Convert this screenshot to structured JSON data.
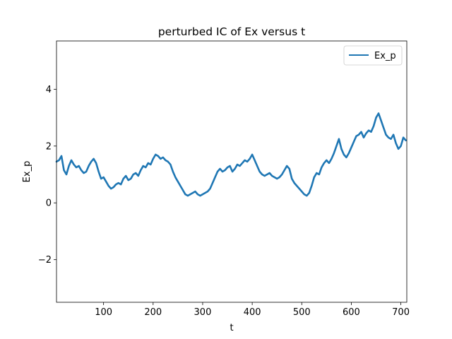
{
  "chart_data": {
    "type": "line",
    "title": "perturbed IC of Ex versus t",
    "xlabel": "t",
    "ylabel": "Ex_p",
    "xlim": [
      5,
      712
    ],
    "ylim": [
      -3.5,
      5.7
    ],
    "xticks": [
      100,
      200,
      300,
      400,
      500,
      600,
      700
    ],
    "yticks": [
      -2,
      0,
      2,
      4
    ],
    "ytick_labels": [
      "−2",
      "0",
      "2",
      "4"
    ],
    "grid": false,
    "legend": {
      "position": "top-right"
    },
    "series": [
      {
        "name": "Ex_p",
        "color": "#1f77b4",
        "x": [
          5,
          10,
          15,
          20,
          25,
          30,
          35,
          40,
          45,
          50,
          55,
          60,
          65,
          70,
          75,
          80,
          85,
          90,
          95,
          100,
          105,
          110,
          115,
          120,
          125,
          130,
          135,
          140,
          145,
          150,
          155,
          160,
          165,
          170,
          175,
          180,
          185,
          190,
          195,
          200,
          205,
          210,
          215,
          220,
          225,
          230,
          235,
          240,
          245,
          250,
          255,
          260,
          265,
          270,
          275,
          280,
          285,
          290,
          295,
          300,
          305,
          310,
          315,
          320,
          325,
          330,
          335,
          340,
          345,
          350,
          355,
          360,
          365,
          370,
          375,
          380,
          385,
          390,
          395,
          400,
          405,
          410,
          415,
          420,
          425,
          430,
          435,
          440,
          445,
          450,
          455,
          460,
          465,
          470,
          475,
          480,
          485,
          490,
          495,
          500,
          505,
          510,
          515,
          520,
          525,
          530,
          535,
          540,
          545,
          550,
          555,
          560,
          565,
          570,
          575,
          580,
          585,
          590,
          595,
          600,
          605,
          610,
          615,
          620,
          625,
          630,
          635,
          640,
          645,
          650,
          655,
          660,
          665,
          670,
          675,
          680,
          685,
          690,
          695,
          700,
          705,
          710
        ],
        "values": [
          1.45,
          1.5,
          1.65,
          1.15,
          1.0,
          1.3,
          1.5,
          1.35,
          1.25,
          1.3,
          1.15,
          1.05,
          1.1,
          1.3,
          1.45,
          1.55,
          1.4,
          1.1,
          0.85,
          0.9,
          0.75,
          0.6,
          0.5,
          0.55,
          0.65,
          0.7,
          0.65,
          0.85,
          0.95,
          0.8,
          0.85,
          1.0,
          1.05,
          0.95,
          1.15,
          1.3,
          1.25,
          1.4,
          1.35,
          1.55,
          1.7,
          1.65,
          1.55,
          1.6,
          1.5,
          1.45,
          1.35,
          1.1,
          0.9,
          0.75,
          0.6,
          0.45,
          0.3,
          0.25,
          0.3,
          0.35,
          0.4,
          0.3,
          0.25,
          0.3,
          0.35,
          0.4,
          0.5,
          0.7,
          0.9,
          1.1,
          1.2,
          1.1,
          1.15,
          1.25,
          1.3,
          1.1,
          1.2,
          1.35,
          1.3,
          1.4,
          1.5,
          1.45,
          1.55,
          1.7,
          1.5,
          1.3,
          1.1,
          1.0,
          0.95,
          1.0,
          1.05,
          0.95,
          0.9,
          0.85,
          0.9,
          1.0,
          1.15,
          1.3,
          1.2,
          0.85,
          0.7,
          0.6,
          0.5,
          0.4,
          0.3,
          0.25,
          0.35,
          0.6,
          0.9,
          1.05,
          1.0,
          1.25,
          1.4,
          1.5,
          1.4,
          1.55,
          1.75,
          2.0,
          2.25,
          1.9,
          1.7,
          1.6,
          1.75,
          1.95,
          2.15,
          2.35,
          2.4,
          2.5,
          2.3,
          2.45,
          2.55,
          2.5,
          2.7,
          3.0,
          3.15,
          2.9,
          2.65,
          2.4,
          2.3,
          2.25,
          2.4,
          2.1,
          1.9,
          2.0,
          2.3,
          2.2
        ]
      }
    ]
  }
}
